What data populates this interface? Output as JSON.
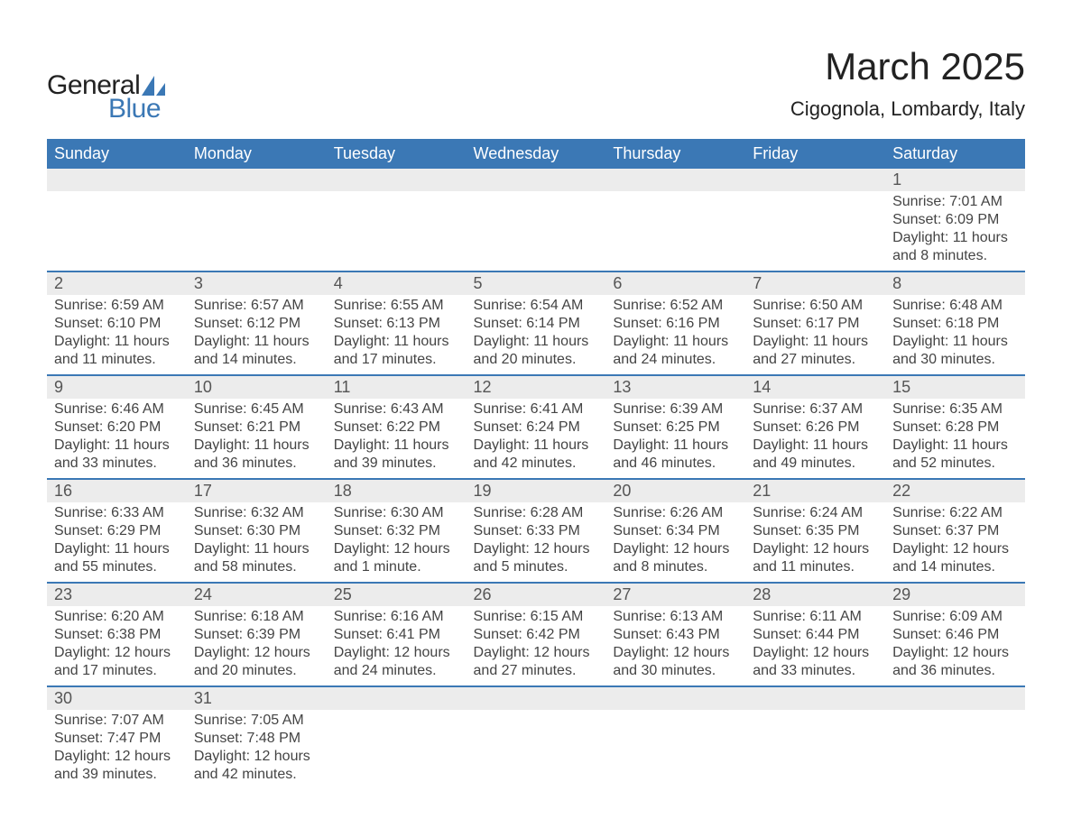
{
  "logo": {
    "text1": "General",
    "text2": "Blue",
    "brand_color": "#3b78b5"
  },
  "header": {
    "title": "March 2025",
    "subtitle": "Cigognola, Lombardy, Italy"
  },
  "calendar": {
    "type": "table",
    "columns": [
      "Sunday",
      "Monday",
      "Tuesday",
      "Wednesday",
      "Thursday",
      "Friday",
      "Saturday"
    ],
    "header_bg": "#3b78b5",
    "header_fg": "#ffffff",
    "day_bg": "#ececec",
    "row_border_color": "#3b78b5",
    "text_color": "#444444",
    "font_size_header": 18,
    "font_size_day": 18,
    "font_size_detail": 16,
    "weeks": [
      [
        null,
        null,
        null,
        null,
        null,
        null,
        {
          "n": "1",
          "sr": "7:01 AM",
          "ss": "6:09 PM",
          "dl": "11 hours and 8 minutes."
        }
      ],
      [
        {
          "n": "2",
          "sr": "6:59 AM",
          "ss": "6:10 PM",
          "dl": "11 hours and 11 minutes."
        },
        {
          "n": "3",
          "sr": "6:57 AM",
          "ss": "6:12 PM",
          "dl": "11 hours and 14 minutes."
        },
        {
          "n": "4",
          "sr": "6:55 AM",
          "ss": "6:13 PM",
          "dl": "11 hours and 17 minutes."
        },
        {
          "n": "5",
          "sr": "6:54 AM",
          "ss": "6:14 PM",
          "dl": "11 hours and 20 minutes."
        },
        {
          "n": "6",
          "sr": "6:52 AM",
          "ss": "6:16 PM",
          "dl": "11 hours and 24 minutes."
        },
        {
          "n": "7",
          "sr": "6:50 AM",
          "ss": "6:17 PM",
          "dl": "11 hours and 27 minutes."
        },
        {
          "n": "8",
          "sr": "6:48 AM",
          "ss": "6:18 PM",
          "dl": "11 hours and 30 minutes."
        }
      ],
      [
        {
          "n": "9",
          "sr": "6:46 AM",
          "ss": "6:20 PM",
          "dl": "11 hours and 33 minutes."
        },
        {
          "n": "10",
          "sr": "6:45 AM",
          "ss": "6:21 PM",
          "dl": "11 hours and 36 minutes."
        },
        {
          "n": "11",
          "sr": "6:43 AM",
          "ss": "6:22 PM",
          "dl": "11 hours and 39 minutes."
        },
        {
          "n": "12",
          "sr": "6:41 AM",
          "ss": "6:24 PM",
          "dl": "11 hours and 42 minutes."
        },
        {
          "n": "13",
          "sr": "6:39 AM",
          "ss": "6:25 PM",
          "dl": "11 hours and 46 minutes."
        },
        {
          "n": "14",
          "sr": "6:37 AM",
          "ss": "6:26 PM",
          "dl": "11 hours and 49 minutes."
        },
        {
          "n": "15",
          "sr": "6:35 AM",
          "ss": "6:28 PM",
          "dl": "11 hours and 52 minutes."
        }
      ],
      [
        {
          "n": "16",
          "sr": "6:33 AM",
          "ss": "6:29 PM",
          "dl": "11 hours and 55 minutes."
        },
        {
          "n": "17",
          "sr": "6:32 AM",
          "ss": "6:30 PM",
          "dl": "11 hours and 58 minutes."
        },
        {
          "n": "18",
          "sr": "6:30 AM",
          "ss": "6:32 PM",
          "dl": "12 hours and 1 minute."
        },
        {
          "n": "19",
          "sr": "6:28 AM",
          "ss": "6:33 PM",
          "dl": "12 hours and 5 minutes."
        },
        {
          "n": "20",
          "sr": "6:26 AM",
          "ss": "6:34 PM",
          "dl": "12 hours and 8 minutes."
        },
        {
          "n": "21",
          "sr": "6:24 AM",
          "ss": "6:35 PM",
          "dl": "12 hours and 11 minutes."
        },
        {
          "n": "22",
          "sr": "6:22 AM",
          "ss": "6:37 PM",
          "dl": "12 hours and 14 minutes."
        }
      ],
      [
        {
          "n": "23",
          "sr": "6:20 AM",
          "ss": "6:38 PM",
          "dl": "12 hours and 17 minutes."
        },
        {
          "n": "24",
          "sr": "6:18 AM",
          "ss": "6:39 PM",
          "dl": "12 hours and 20 minutes."
        },
        {
          "n": "25",
          "sr": "6:16 AM",
          "ss": "6:41 PM",
          "dl": "12 hours and 24 minutes."
        },
        {
          "n": "26",
          "sr": "6:15 AM",
          "ss": "6:42 PM",
          "dl": "12 hours and 27 minutes."
        },
        {
          "n": "27",
          "sr": "6:13 AM",
          "ss": "6:43 PM",
          "dl": "12 hours and 30 minutes."
        },
        {
          "n": "28",
          "sr": "6:11 AM",
          "ss": "6:44 PM",
          "dl": "12 hours and 33 minutes."
        },
        {
          "n": "29",
          "sr": "6:09 AM",
          "ss": "6:46 PM",
          "dl": "12 hours and 36 minutes."
        }
      ],
      [
        {
          "n": "30",
          "sr": "7:07 AM",
          "ss": "7:47 PM",
          "dl": "12 hours and 39 minutes."
        },
        {
          "n": "31",
          "sr": "7:05 AM",
          "ss": "7:48 PM",
          "dl": "12 hours and 42 minutes."
        },
        null,
        null,
        null,
        null,
        null
      ]
    ],
    "labels": {
      "sunrise": "Sunrise:",
      "sunset": "Sunset:",
      "daylight": "Daylight:"
    }
  }
}
